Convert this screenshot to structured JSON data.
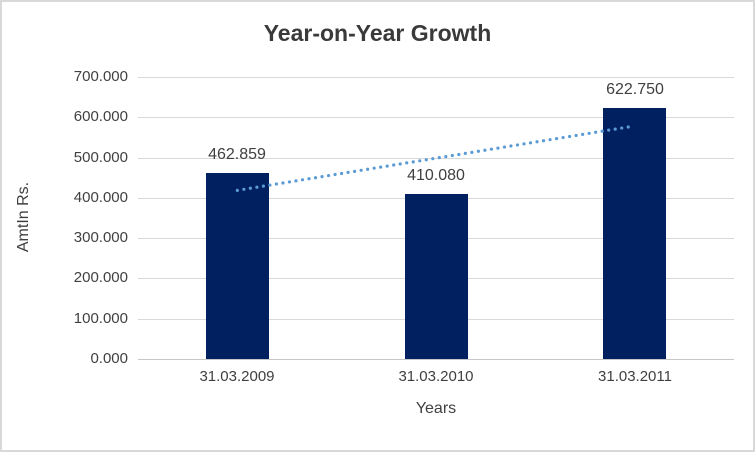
{
  "chart_data": {
    "type": "bar",
    "title": "Year-on-Year Growth",
    "categories": [
      "31.03.2009",
      "31.03.2010",
      "31.03.2011"
    ],
    "values": [
      462.859,
      410.08,
      622.75
    ],
    "data_labels": [
      "462.859",
      "410.080",
      "622.750"
    ],
    "xlabel": "Years",
    "ylabel": "AmtIn Rs.",
    "ylim": [
      0,
      700
    ],
    "ytick_step": 100,
    "ytick_labels": [
      "0.000",
      "100.000",
      "200.000",
      "300.000",
      "400.000",
      "500.000",
      "600.000",
      "700.000"
    ],
    "grid": true,
    "legend_position": "none",
    "trendline": {
      "type": "linear",
      "style": "dotted",
      "start_category_index": 0,
      "end_category_index": 2,
      "start_value": 418.6,
      "end_value": 578.5
    }
  },
  "colors": {
    "bar": "#002060",
    "trendline": "#5b9bd5",
    "gridline": "#d9d9d9",
    "axis_line": "#c6c6c6",
    "text": "#404040",
    "title_text": "#3a3a3a",
    "chart_border": "#d9d9d9",
    "background": "#ffffff"
  }
}
